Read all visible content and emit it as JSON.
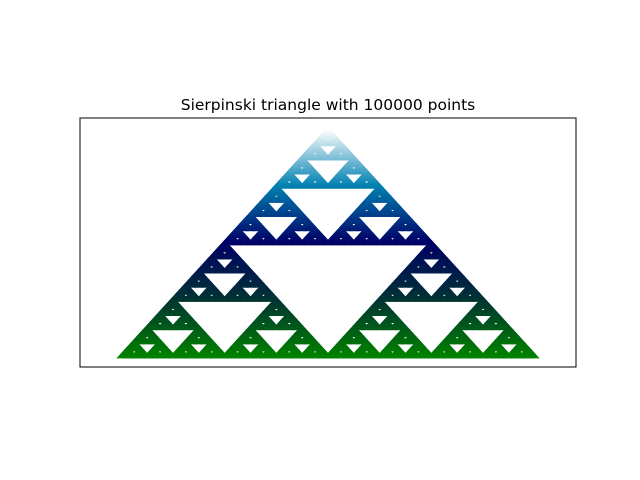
{
  "chart_data": {
    "type": "scatter",
    "title": "Sierpinski triangle with 100000 points",
    "num_points": 100000,
    "vertices": [
      [
        0,
        0
      ],
      [
        2,
        0
      ],
      [
        1,
        1
      ]
    ],
    "xlim": [
      -0.2,
      2.2
    ],
    "ylim": [
      -0.05,
      1.05
    ],
    "xlabel": "",
    "ylabel": "",
    "xticks": [],
    "yticks": [],
    "grid": false,
    "legend": "none",
    "colormap": "ocean",
    "color_stops": [
      {
        "y": 0.0,
        "color": "#008000"
      },
      {
        "y": 0.25,
        "color": "#003333"
      },
      {
        "y": 0.5,
        "color": "#000066"
      },
      {
        "y": 0.75,
        "color": "#0080b0"
      },
      {
        "y": 1.0,
        "color": "#ffffff"
      }
    ]
  }
}
